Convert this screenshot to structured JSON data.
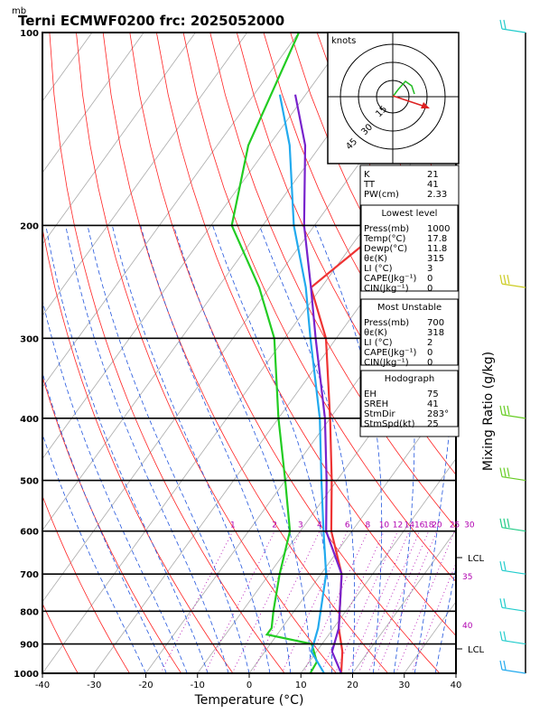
{
  "title": "Terni ECMWF0200  frc: 2025052000",
  "units_label": "mb",
  "hodograph": {
    "label": "knots",
    "rings": [
      "15",
      "30",
      "45"
    ]
  },
  "chart_data": {
    "type": "line",
    "xlabel": "Temperature (°C)",
    "ylabel": "Mixing Ratio (g/kg)",
    "xlim": [
      -40,
      40
    ],
    "ylim": [
      1000,
      100
    ],
    "x_ticks": [
      "-40",
      "-30",
      "-20",
      "-10",
      "0",
      "10",
      "20",
      "30",
      "40"
    ],
    "p_ticks": [
      "100",
      "200",
      "300",
      "400",
      "500",
      "600",
      "700",
      "800",
      "900",
      "1000"
    ],
    "mixing_ratio_labels": [
      "1",
      "2",
      "3",
      "4",
      "6",
      "8",
      "10",
      "12",
      "14",
      "16",
      "18",
      "20",
      "25",
      "30"
    ],
    "theta_labels": [
      "35",
      "40"
    ],
    "lcl_labels": [
      "LCL",
      "LCL"
    ],
    "series": [
      {
        "name": "Temperature",
        "color": "#ee3333",
        "p": [
          1000,
          925,
          850,
          700,
          600,
          500,
          400,
          300,
          250,
          200,
          150,
          100
        ],
        "t": [
          17.8,
          15,
          11,
          4,
          -4,
          -11,
          -20,
          -32,
          -42,
          -36,
          -25,
          -14
        ]
      },
      {
        "name": "Dewpoint",
        "color": "#22cc22",
        "p": [
          1000,
          960,
          900,
          870,
          850,
          800,
          700,
          600,
          500,
          400,
          300,
          250,
          200,
          150,
          100
        ],
        "t": [
          11.8,
          11.5,
          8,
          -2,
          -2,
          -4,
          -8,
          -12,
          -20,
          -30,
          -42,
          -52,
          -66,
          -74,
          -80
        ]
      },
      {
        "name": "Parcel",
        "color": "#7722cc",
        "p": [
          1000,
          925,
          850,
          700,
          600,
          500,
          400,
          300,
          250,
          200,
          150,
          125
        ],
        "t": [
          17.8,
          13,
          11,
          4,
          -5,
          -12,
          -21,
          -34,
          -42,
          -52,
          -63,
          -72
        ]
      },
      {
        "name": "Virtual",
        "color": "#22aaee",
        "p": [
          1000,
          925,
          850,
          700,
          600,
          500,
          400,
          300,
          250,
          200,
          150,
          125
        ],
        "t": [
          14.5,
          9,
          7,
          1,
          -5.5,
          -13,
          -22,
          -35,
          -43,
          -54,
          -66,
          -75
        ]
      }
    ]
  },
  "stats": [
    {
      "k": "K",
      "v": "21"
    },
    {
      "k": "TT",
      "v": "41"
    },
    {
      "k": "PW(cm)",
      "v": "2.33"
    }
  ],
  "lowest_level": {
    "header": "Lowest level",
    "rows": [
      {
        "k": "Press(mb)",
        "v": "1000"
      },
      {
        "k": "Temp(°C)",
        "v": "17.8"
      },
      {
        "k": "Dewp(°C)",
        "v": "11.8"
      },
      {
        "k": "θε(K)",
        "v": "315"
      },
      {
        "k": "LI (°C)",
        "v": "3"
      },
      {
        "k": "CAPE(Jkg⁻¹)",
        "v": "0"
      },
      {
        "k": "CIN(Jkg⁻¹)",
        "v": "0"
      }
    ]
  },
  "most_unstable": {
    "header": "Most Unstable",
    "rows": [
      {
        "k": "Press(mb)",
        "v": "700"
      },
      {
        "k": "θε(K)",
        "v": "318"
      },
      {
        "k": "LI (°C)",
        "v": "2"
      },
      {
        "k": "CAPE(Jkg⁻¹)",
        "v": "0"
      },
      {
        "k": "CIN(Jkg⁻¹)",
        "v": "0"
      }
    ]
  },
  "hodograph_box": {
    "header": "Hodograph",
    "rows": [
      {
        "k": "EH",
        "v": "75"
      },
      {
        "k": "SREH",
        "v": "41"
      },
      {
        "k": "StmDir",
        "v": "283°"
      },
      {
        "k": "StmSpd(kt)",
        "v": "25"
      }
    ]
  }
}
